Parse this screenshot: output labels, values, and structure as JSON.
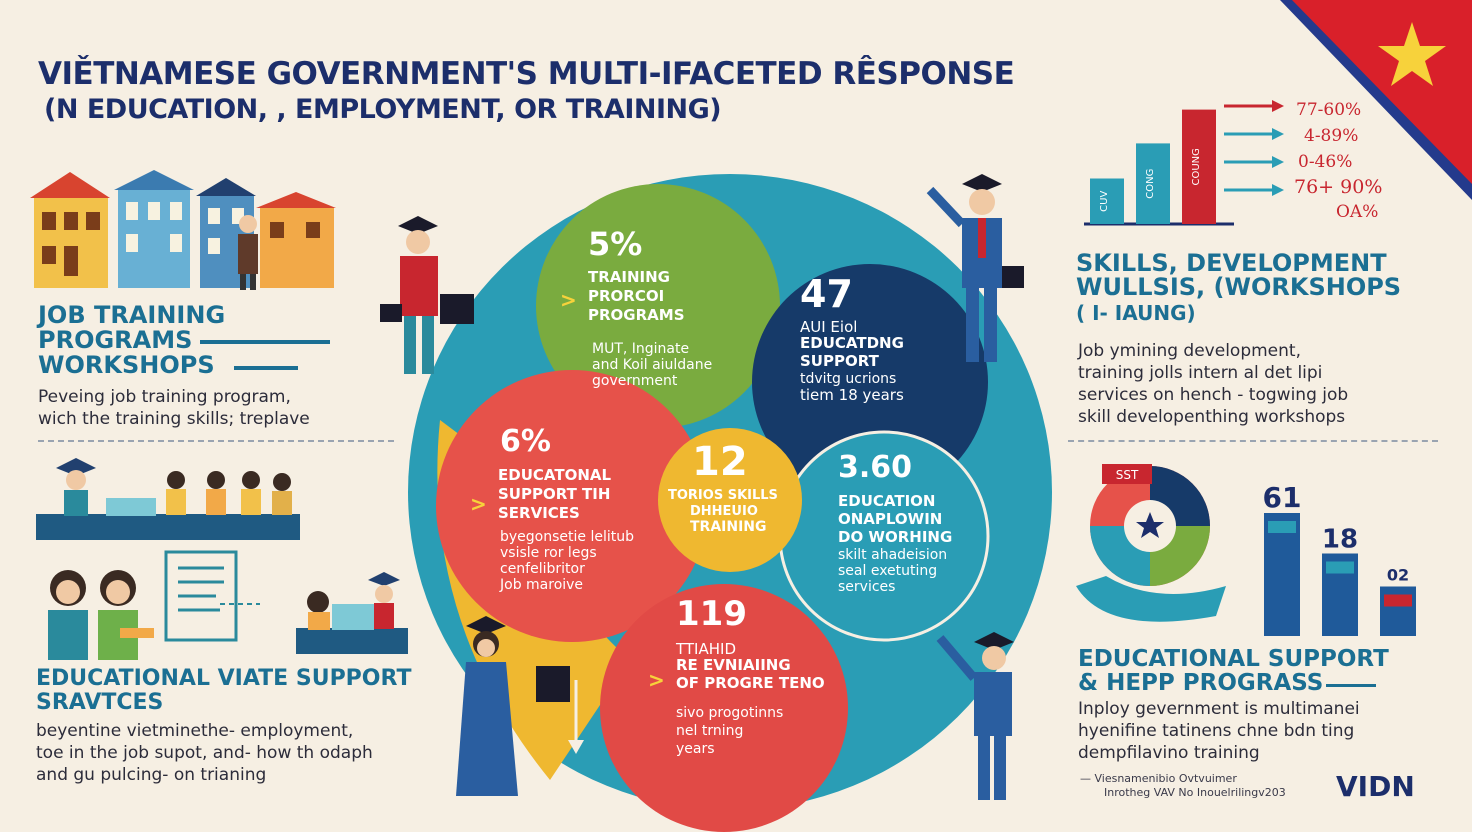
{
  "header": {
    "title_line1": "VIĚTNAMESE GOVERNMENT'S MULTI-IFACETED RÊSPONSE",
    "title_line2": "(N EDUCATION, , EMPLOYMENT, OR TRAINING)"
  },
  "left": {
    "section1": {
      "title_lines": [
        "JOB TRAINING",
        "PROGRAMS",
        "WORKSHOPS"
      ],
      "body_lines": [
        "Peveing job training program,",
        "wich the training skills; treplave"
      ]
    },
    "section2": {
      "title_lines": [
        "EDUCATIONAL VIATE SUPPORT",
        "SRAVTCES"
      ],
      "body_lines": [
        "beyentine vietminethe- employment,",
        "toe in the job supot, and- how th odaph",
        "and gu pulcing- on trianing"
      ]
    }
  },
  "center": {
    "bubbles": [
      {
        "id": "training",
        "number": "5%",
        "title_lines": [
          "TRAINING",
          "PRORCOI",
          "PROGRAMS"
        ],
        "body_lines": [
          "MUT, Inginate",
          "and Koil aiuldane",
          "government"
        ],
        "color": "#7aab3f"
      },
      {
        "id": "educating",
        "number": "47",
        "title_lines": [
          "AUI Eiol",
          "EDUCATDNG",
          "SUPPORT"
        ],
        "body_lines": [
          "tdvitg ucrions",
          "tiem 18 years"
        ],
        "color": "#163a69"
      },
      {
        "id": "educational",
        "number": "6%",
        "title_lines": [
          "EDUCATONAL",
          "SUPPORT TIH",
          "SERVICES"
        ],
        "body_lines": [
          "byegonsetie lelitub",
          "vsisle ror legs",
          "cenfelibritor",
          "Job maroive"
        ],
        "color": "#e6524a"
      },
      {
        "id": "skills",
        "number": "12",
        "title_lines": [
          "TORIOS SKILLS",
          "DHHEUIO",
          "TRAINING"
        ],
        "body_lines": [],
        "color": "#efb830"
      },
      {
        "id": "education",
        "number": "3.60",
        "title_lines": [
          "EDUCATION",
          "ONAPLOWIN",
          "DO WORHING"
        ],
        "body_lines": [
          "skilt ahadeision",
          "seal exetuting",
          "services"
        ],
        "color": "#2a9db5"
      },
      {
        "id": "retraining",
        "number": "119",
        "title_lines": [
          "TTIAHID",
          "RE EVNIAIING",
          "OF PROGRE TENO"
        ],
        "body_lines": [
          "sivo progotinns",
          "nel trning",
          "years"
        ],
        "color": "#e14a46"
      }
    ]
  },
  "right": {
    "stats": [
      "77-60%",
      "4-89%",
      "0-46%",
      "76+ 90%",
      "OA%"
    ],
    "mini_bars": [
      {
        "label": "CUV",
        "level": 0.35
      },
      {
        "label": "CONG",
        "level": 0.62
      },
      {
        "label": "COUNG",
        "level": 0.88
      }
    ],
    "section1": {
      "title_lines": [
        "SKILLS, DEVELOPMENT",
        "WULLSIS, (WORKSHOPS",
        "( I- IAUNG)"
      ],
      "body_lines": [
        "Job ymining development,",
        "training jolls intern al det lipi",
        "services on hench - togwing job",
        "skill developenthing workshops"
      ]
    },
    "chart": {
      "bars": [
        {
          "value_label": "61",
          "level": 0.82
        },
        {
          "value_label": "18",
          "level": 0.55
        },
        {
          "value_label": "02",
          "level": 0.33
        }
      ],
      "donut_label": "SST"
    },
    "section2": {
      "title_lines": [
        "EDUCATIONAL SUPPORT",
        "& HEPP PROGRASS"
      ],
      "body_lines": [
        "Inploy gevernment is multimanei",
        "hyenifine tatinens chne bdn ting",
        "dempfilavino training"
      ]
    },
    "footer": {
      "source_lines": [
        "— Viesnamenibio Ovtvuimer",
        "Inrotheg VAV No Inouelrilingv203"
      ],
      "logo": "VIDN"
    }
  },
  "colors": {
    "navy": "#1c2e6b",
    "teal": "#1b6f93",
    "red": "#c8262f",
    "green": "#7aab3f",
    "yellow": "#efb830",
    "flag_red": "#d9202a",
    "flag_star": "#f7d23b"
  }
}
